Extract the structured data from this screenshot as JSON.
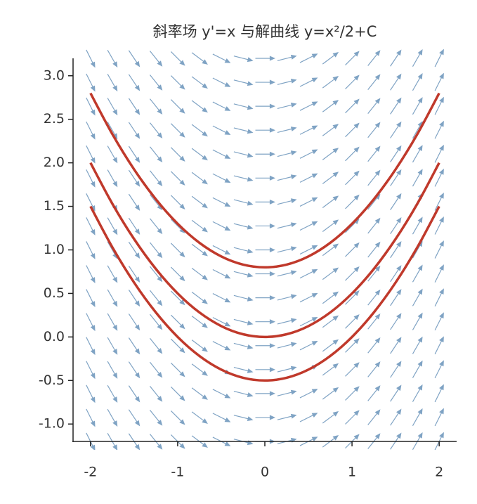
{
  "chart_data": {
    "type": "slope-field",
    "title": "斜率场 y'=x 与解曲线 y=x²/2+C",
    "field": {
      "color": "#7fa3c4",
      "x": [
        -2,
        -1.75,
        -1.5,
        -1.25,
        -1,
        -0.75,
        -0.5,
        -0.25,
        0,
        0.25,
        0.5,
        0.75,
        1,
        1.25,
        1.5,
        1.75,
        2
      ],
      "y": [
        -1.2,
        -0.925,
        -0.65,
        -0.375,
        -0.1,
        0.175,
        0.45,
        0.725,
        1.0,
        1.275,
        1.55,
        1.825,
        2.1,
        2.375,
        2.65,
        2.925,
        3.2
      ],
      "slopes": [
        -2,
        -1.75,
        -1.5,
        -1.25,
        -1,
        -0.75,
        -0.5,
        -0.25,
        0,
        0.25,
        0.5,
        0.75,
        1,
        1.25,
        1.5,
        1.75,
        2
      ]
    },
    "x": [
      -2,
      -1.75,
      -1.5,
      -1.25,
      -1,
      -0.75,
      -0.5,
      -0.25,
      0,
      0.25,
      0.5,
      0.75,
      1,
      1.25,
      1.5,
      1.75,
      2
    ],
    "series": [
      {
        "color": "#c0392b",
        "values": [
          1.5,
          1.03125,
          0.625,
          0.28125,
          0,
          -0.21875,
          -0.375,
          -0.46875,
          -0.5,
          -0.46875,
          -0.375,
          -0.21875,
          0,
          0.28125,
          0.625,
          1.03125,
          1.5
        ]
      },
      {
        "color": "#c0392b",
        "values": [
          2,
          1.53125,
          1.125,
          0.78125,
          0.5,
          0.28125,
          0.125,
          0.03125,
          0,
          0.03125,
          0.125,
          0.28125,
          0.5,
          0.78125,
          1.125,
          1.53125,
          2
        ]
      },
      {
        "color": "#c0392b",
        "values": [
          2.8,
          2.33125,
          1.925,
          1.58125,
          1.3,
          1.08125,
          0.925,
          0.83125,
          0.8,
          0.83125,
          0.925,
          1.08125,
          1.3,
          1.58125,
          1.925,
          2.33125,
          2.8
        ]
      }
    ],
    "xlim": [
      -2.2,
      2.2
    ],
    "ylim": [
      -1.2,
      3.2
    ],
    "xticks": [
      -2,
      -1,
      0,
      1,
      2
    ],
    "yticks": [
      {
        "value": -1,
        "label": "-1.0"
      },
      -0.5,
      {
        "value": 0,
        "label": "0.0"
      },
      0.5,
      {
        "value": 1,
        "label": "1.0"
      },
      1.5,
      {
        "value": 2,
        "label": "2.0"
      },
      2.5,
      {
        "value": 3,
        "label": "3.0"
      }
    ]
  }
}
